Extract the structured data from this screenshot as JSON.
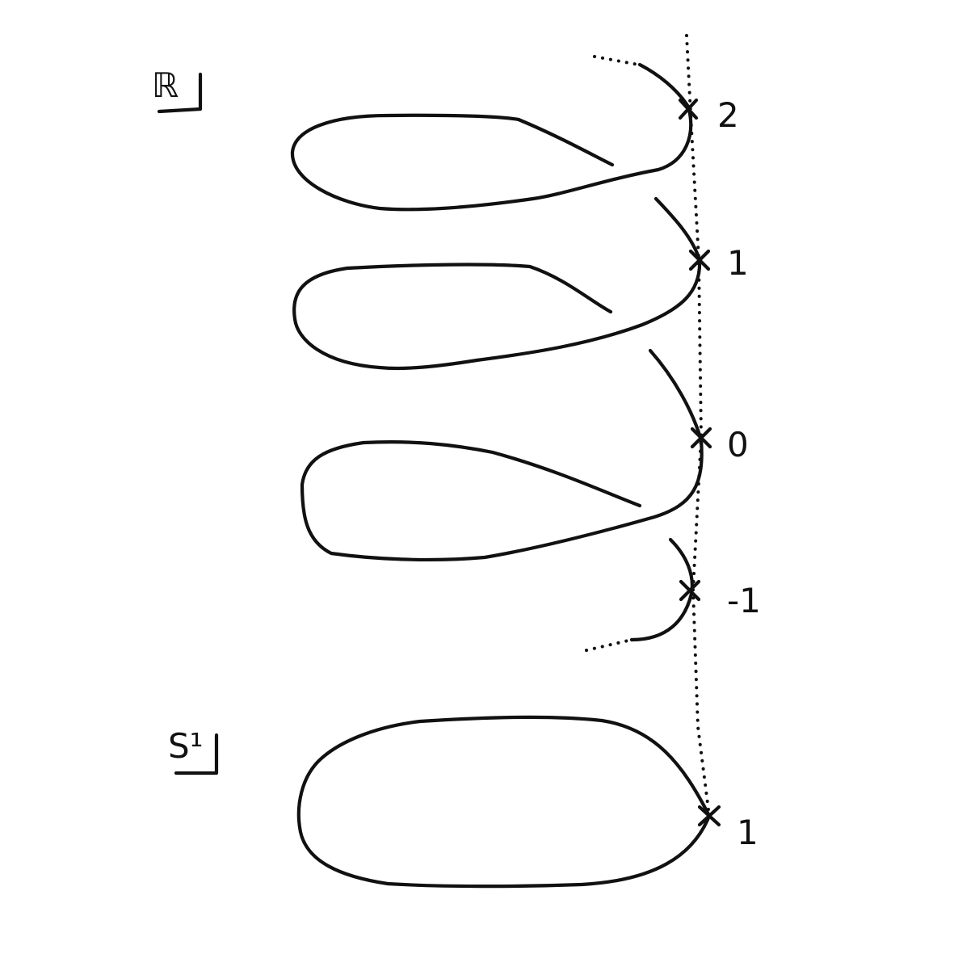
{
  "spaces": {
    "covering": "ℝ",
    "base": "S¹"
  },
  "fiber_labels": [
    "2",
    "1",
    "0",
    "-1"
  ],
  "base_point_label": "1",
  "colors": {
    "ink": "#111111",
    "background": "#ffffff"
  }
}
